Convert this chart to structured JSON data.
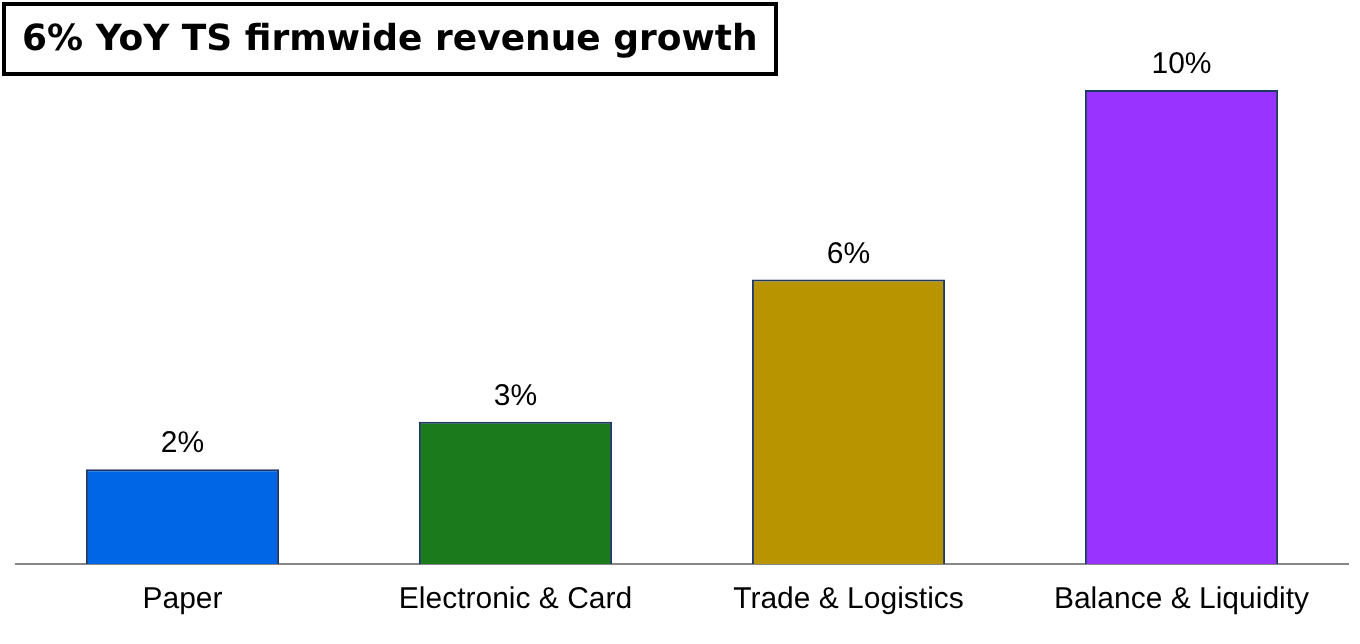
{
  "chart_data": {
    "type": "bar",
    "title": "6% YoY TS firmwide revenue growth",
    "categories": [
      "Paper",
      "Electronic & Card",
      "Trade & Logistics",
      "Balance & Liquidity"
    ],
    "values": [
      2,
      3,
      6,
      10
    ],
    "colors": [
      "#0066e6",
      "#1b7a1b",
      "#b89400",
      "#9933ff"
    ],
    "value_labels": [
      "2%",
      "3%",
      "6%",
      "10%"
    ],
    "grid": false,
    "legend": false
  }
}
